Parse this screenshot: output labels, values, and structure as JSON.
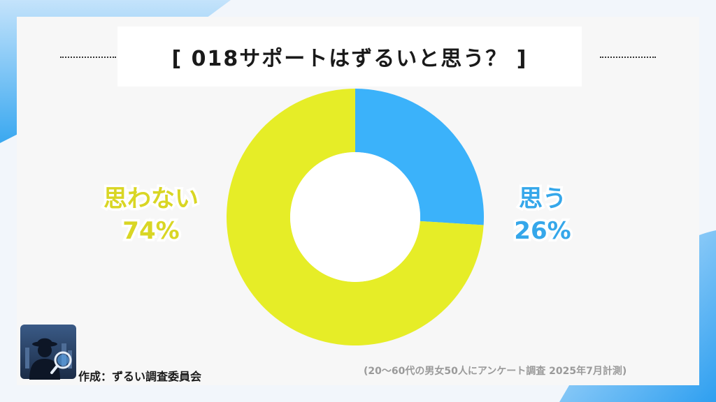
{
  "title": "[ 018サポートはずるいと思う？ ]",
  "credit": "作成：ずるい調査委員会",
  "survey_note": "(20〜60代の男女50人にアンケート調査 2025年7月計測)",
  "chart_data": {
    "type": "pie",
    "donut": true,
    "title": "[ 018サポートはずるいと思う？ ]",
    "slices": [
      {
        "label": "思う",
        "value": 26,
        "value_label": "26%",
        "color": "#3bb2fa"
      },
      {
        "label": "思わない",
        "value": 74,
        "value_label": "74%",
        "color": "#e6ed27"
      }
    ]
  }
}
